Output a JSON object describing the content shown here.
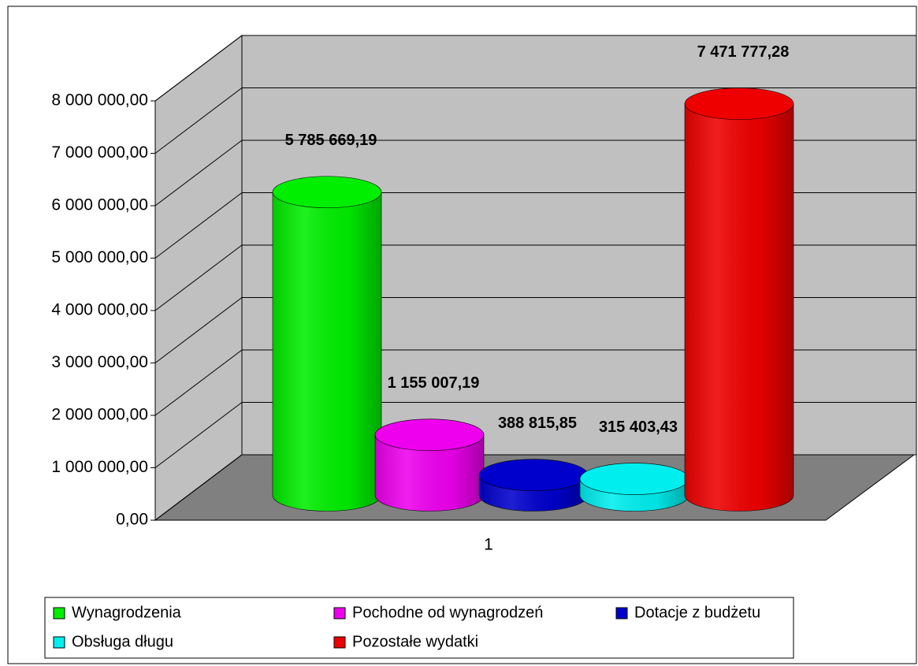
{
  "chart_data": {
    "type": "bar3d",
    "categories": [
      "1"
    ],
    "series": [
      {
        "name": "Wynagrodzenia",
        "color": "#00ee00",
        "values": [
          5785669.19
        ],
        "value_labels": [
          "5 785 669,19"
        ]
      },
      {
        "name": "Pochodne od wynagrodzeń",
        "color": "#ee00ee",
        "values": [
          1155007.19
        ],
        "value_labels": [
          "1 155 007,19"
        ]
      },
      {
        "name": "Dotacje z budżetu",
        "color": "#0000cc",
        "values": [
          388815.85
        ],
        "value_labels": [
          "388 815,85"
        ]
      },
      {
        "name": "Obsługa długu",
        "color": "#00eeee",
        "values": [
          315403.43
        ],
        "value_labels": [
          "315 403,43"
        ]
      },
      {
        "name": "Pozostałe wydatki",
        "color": "#ee0000",
        "values": [
          7471777.28
        ],
        "value_labels": [
          "7 471 777,28"
        ]
      }
    ],
    "ylim": [
      0,
      8000000
    ],
    "yticks": [
      {
        "value": 0,
        "label": "0,00"
      },
      {
        "value": 1000000,
        "label": "1 000 000,00"
      },
      {
        "value": 2000000,
        "label": "2 000 000,00"
      },
      {
        "value": 3000000,
        "label": "3 000 000,00"
      },
      {
        "value": 4000000,
        "label": "4 000 000,00"
      },
      {
        "value": 5000000,
        "label": "5 000 000,00"
      },
      {
        "value": 6000000,
        "label": "6 000 000,00"
      },
      {
        "value": 7000000,
        "label": "7 000 000,00"
      },
      {
        "value": 8000000,
        "label": "8 000 000,00"
      }
    ],
    "grid": true
  }
}
